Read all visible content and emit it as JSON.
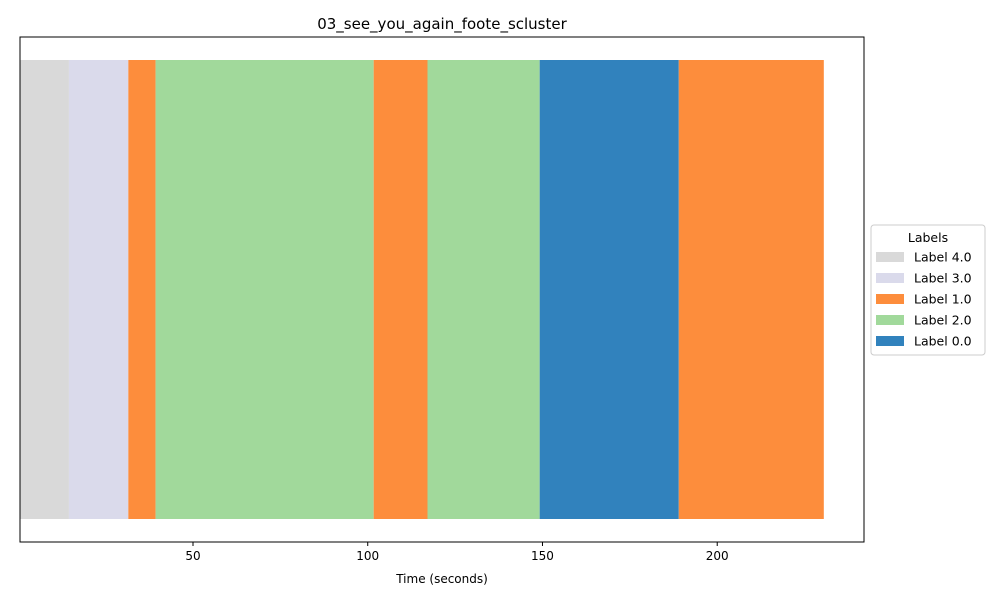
{
  "chart_data": {
    "type": "bar",
    "orientation": "horizontal-timeline",
    "title": "03_see_you_again_foote_scluster",
    "xlabel": "Time (seconds)",
    "ylabel": "",
    "xlim": [
      0.5,
      242
    ],
    "xticks": [
      50,
      100,
      150,
      200
    ],
    "grid": false,
    "legend": {
      "title": "Labels",
      "placement": "center-right outside",
      "entries": [
        {
          "name": "Label 4.0",
          "color": "#d9d9d9"
        },
        {
          "name": "Label 3.0",
          "color": "#dadaeb"
        },
        {
          "name": "Label 1.0",
          "color": "#fd8d3c"
        },
        {
          "name": "Label 2.0",
          "color": "#a1d99b"
        },
        {
          "name": "Label 0.0",
          "color": "#3182bd"
        }
      ]
    },
    "segments": [
      {
        "label": "Label 4.0",
        "start": 0.5,
        "end": 14.5
      },
      {
        "label": "Label 3.0",
        "start": 14.5,
        "end": 31.5
      },
      {
        "label": "Label 1.0",
        "start": 31.5,
        "end": 39.3
      },
      {
        "label": "Label 2.0",
        "start": 39.3,
        "end": 101.7
      },
      {
        "label": "Label 1.0",
        "start": 101.7,
        "end": 117.1
      },
      {
        "label": "Label 2.0",
        "start": 117.1,
        "end": 149.2
      },
      {
        "label": "Label 0.0",
        "start": 149.2,
        "end": 189.0
      },
      {
        "label": "Label 1.0",
        "start": 189.0,
        "end": 230.5
      }
    ]
  }
}
